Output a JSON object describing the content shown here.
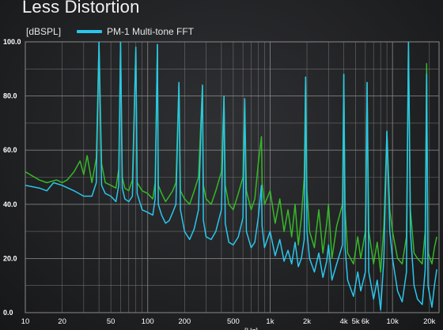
{
  "header": {
    "title": "Less Distortion"
  },
  "colors": {
    "green": "#35b828",
    "cyan": "#2ac6ec",
    "grid": "#8a8a8a"
  },
  "chart_data": {
    "type": "line",
    "title": "Less Distortion",
    "xlabel": "[Hz]",
    "ylabel": "[dBSPL]",
    "xscale": "log",
    "xlim": [
      10,
      24000
    ],
    "ylim": [
      0,
      100
    ],
    "grid": true,
    "legend_position": "top-left",
    "x_ticks": [
      {
        "v": 10,
        "label": "10"
      },
      {
        "v": 20,
        "label": "20"
      },
      {
        "v": 50,
        "label": "50"
      },
      {
        "v": 100,
        "label": "100"
      },
      {
        "v": 200,
        "label": "200"
      },
      {
        "v": 500,
        "label": "500"
      },
      {
        "v": 1000,
        "label": "1k"
      },
      {
        "v": 2000,
        "label": "2k"
      },
      {
        "v": 4000,
        "label": "4k"
      },
      {
        "v": 5000,
        "label": "5k"
      },
      {
        "v": 6000,
        "label": "6k"
      },
      {
        "v": 10000,
        "label": "10k"
      },
      {
        "v": 20000,
        "label": "20k"
      }
    ],
    "y_ticks": [
      {
        "v": 0,
        "label": "0.0"
      },
      {
        "v": 20,
        "label": "20.0"
      },
      {
        "v": 40,
        "label": "40.0"
      },
      {
        "v": 60,
        "label": "60.0"
      },
      {
        "v": 80,
        "label": "80.0"
      },
      {
        "v": 100,
        "label": "100.0"
      }
    ],
    "series": [
      {
        "name": "PM-1 Multi-tone FFT",
        "color": "#2ac6ec",
        "points": [
          [
            10,
            47
          ],
          [
            13,
            46
          ],
          [
            15,
            45
          ],
          [
            17,
            48
          ],
          [
            20,
            47
          ],
          [
            25,
            45
          ],
          [
            30,
            43
          ],
          [
            35,
            43
          ],
          [
            38,
            48
          ],
          [
            40,
            100
          ],
          [
            42,
            47
          ],
          [
            45,
            44
          ],
          [
            50,
            43
          ],
          [
            55,
            41
          ],
          [
            58,
            47
          ],
          [
            60,
            100
          ],
          [
            62,
            46
          ],
          [
            65,
            42
          ],
          [
            70,
            41
          ],
          [
            75,
            43
          ],
          [
            80,
            98
          ],
          [
            82,
            44
          ],
          [
            90,
            38
          ],
          [
            100,
            37
          ],
          [
            110,
            36
          ],
          [
            115,
            42
          ],
          [
            120,
            99
          ],
          [
            122,
            40
          ],
          [
            130,
            36
          ],
          [
            140,
            33
          ],
          [
            150,
            34
          ],
          [
            160,
            37
          ],
          [
            170,
            40
          ],
          [
            180,
            85
          ],
          [
            185,
            38
          ],
          [
            200,
            30
          ],
          [
            220,
            27
          ],
          [
            240,
            31
          ],
          [
            260,
            38
          ],
          [
            280,
            84
          ],
          [
            285,
            34
          ],
          [
            300,
            28
          ],
          [
            330,
            27
          ],
          [
            360,
            30
          ],
          [
            400,
            38
          ],
          [
            420,
            80
          ],
          [
            430,
            33
          ],
          [
            460,
            26
          ],
          [
            500,
            25
          ],
          [
            550,
            28
          ],
          [
            600,
            35
          ],
          [
            620,
            79
          ],
          [
            640,
            30
          ],
          [
            700,
            24
          ],
          [
            750,
            26
          ],
          [
            800,
            35
          ],
          [
            850,
            47
          ],
          [
            860,
            32
          ],
          [
            900,
            24
          ],
          [
            1000,
            30
          ],
          [
            1100,
            21
          ],
          [
            1200,
            27
          ],
          [
            1300,
            19
          ],
          [
            1400,
            23
          ],
          [
            1500,
            18
          ],
          [
            1600,
            26
          ],
          [
            1700,
            17
          ],
          [
            1800,
            20
          ],
          [
            1900,
            27
          ],
          [
            1950,
            87
          ],
          [
            2000,
            30
          ],
          [
            2100,
            20
          ],
          [
            2300,
            15
          ],
          [
            2500,
            22
          ],
          [
            2700,
            13
          ],
          [
            2900,
            19
          ],
          [
            3000,
            25
          ],
          [
            3200,
            12
          ],
          [
            3500,
            18
          ],
          [
            3900,
            25
          ],
          [
            4000,
            88
          ],
          [
            4100,
            24
          ],
          [
            4300,
            12
          ],
          [
            4800,
            6
          ],
          [
            5200,
            15
          ],
          [
            5500,
            8
          ],
          [
            6000,
            15
          ],
          [
            6200,
            85
          ],
          [
            6400,
            15
          ],
          [
            7000,
            5
          ],
          [
            7500,
            12
          ],
          [
            8000,
            1
          ],
          [
            8500,
            20
          ],
          [
            9000,
            67
          ],
          [
            9500,
            30
          ],
          [
            10000,
            20
          ],
          [
            11000,
            8
          ],
          [
            12000,
            4
          ],
          [
            13000,
            15
          ],
          [
            13500,
            100
          ],
          [
            14000,
            30
          ],
          [
            15000,
            10
          ],
          [
            16000,
            5
          ],
          [
            17500,
            3
          ],
          [
            18500,
            16
          ],
          [
            19000,
            88
          ],
          [
            19500,
            10
          ],
          [
            21000,
            2
          ],
          [
            22000,
            10
          ],
          [
            23000,
            16
          ]
        ]
      },
      {
        "name": "",
        "color": "#35b828",
        "points": [
          [
            10,
            52
          ],
          [
            13,
            49
          ],
          [
            15,
            48
          ],
          [
            18,
            49
          ],
          [
            20,
            48
          ],
          [
            22,
            49
          ],
          [
            25,
            52
          ],
          [
            28,
            56
          ],
          [
            30,
            51
          ],
          [
            32,
            58
          ],
          [
            35,
            48
          ],
          [
            38,
            57
          ],
          [
            40,
            100
          ],
          [
            42,
            55
          ],
          [
            45,
            48
          ],
          [
            50,
            47
          ],
          [
            55,
            46
          ],
          [
            58,
            53
          ],
          [
            60,
            100
          ],
          [
            62,
            50
          ],
          [
            65,
            46
          ],
          [
            70,
            45
          ],
          [
            75,
            49
          ],
          [
            80,
            98
          ],
          [
            82,
            48
          ],
          [
            90,
            45
          ],
          [
            100,
            44
          ],
          [
            110,
            42
          ],
          [
            115,
            48
          ],
          [
            120,
            99
          ],
          [
            122,
            47
          ],
          [
            130,
            44
          ],
          [
            140,
            41
          ],
          [
            150,
            43
          ],
          [
            160,
            45
          ],
          [
            170,
            48
          ],
          [
            180,
            85
          ],
          [
            185,
            45
          ],
          [
            200,
            42
          ],
          [
            220,
            40
          ],
          [
            240,
            45
          ],
          [
            260,
            50
          ],
          [
            280,
            84
          ],
          [
            285,
            47
          ],
          [
            300,
            42
          ],
          [
            330,
            40
          ],
          [
            360,
            45
          ],
          [
            400,
            52
          ],
          [
            420,
            80
          ],
          [
            430,
            47
          ],
          [
            460,
            40
          ],
          [
            500,
            38
          ],
          [
            550,
            44
          ],
          [
            600,
            50
          ],
          [
            620,
            79
          ],
          [
            640,
            45
          ],
          [
            700,
            38
          ],
          [
            750,
            42
          ],
          [
            800,
            55
          ],
          [
            850,
            65
          ],
          [
            860,
            48
          ],
          [
            900,
            40
          ],
          [
            1000,
            45
          ],
          [
            1100,
            33
          ],
          [
            1200,
            42
          ],
          [
            1300,
            30
          ],
          [
            1400,
            38
          ],
          [
            1500,
            28
          ],
          [
            1600,
            40
          ],
          [
            1700,
            25
          ],
          [
            1800,
            35
          ],
          [
            1900,
            50
          ],
          [
            1950,
            87
          ],
          [
            2000,
            45
          ],
          [
            2100,
            30
          ],
          [
            2300,
            24
          ],
          [
            2500,
            38
          ],
          [
            2700,
            22
          ],
          [
            2900,
            33
          ],
          [
            3000,
            40
          ],
          [
            3200,
            20
          ],
          [
            3500,
            32
          ],
          [
            3900,
            40
          ],
          [
            4000,
            88
          ],
          [
            4100,
            38
          ],
          [
            4300,
            22
          ],
          [
            4800,
            18
          ],
          [
            5200,
            28
          ],
          [
            5500,
            20
          ],
          [
            6000,
            30
          ],
          [
            6200,
            85
          ],
          [
            6400,
            30
          ],
          [
            7000,
            18
          ],
          [
            7500,
            26
          ],
          [
            8000,
            15
          ],
          [
            8500,
            32
          ],
          [
            9000,
            67
          ],
          [
            9500,
            38
          ],
          [
            10000,
            30
          ],
          [
            11000,
            20
          ],
          [
            12000,
            18
          ],
          [
            13000,
            28
          ],
          [
            13500,
            100
          ],
          [
            14000,
            38
          ],
          [
            15000,
            22
          ],
          [
            16000,
            20
          ],
          [
            17500,
            18
          ],
          [
            18500,
            30
          ],
          [
            19000,
            92
          ],
          [
            19500,
            22
          ],
          [
            21000,
            18
          ],
          [
            22000,
            24
          ],
          [
            23000,
            28
          ]
        ]
      }
    ]
  }
}
